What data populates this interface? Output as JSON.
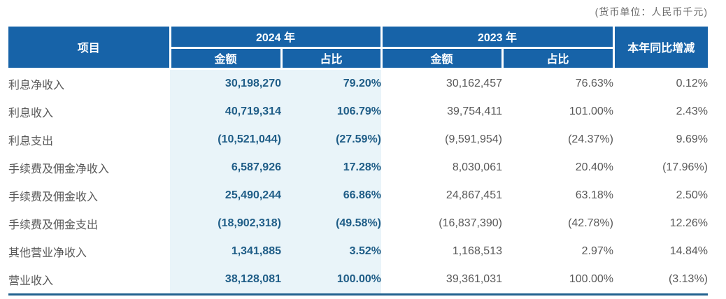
{
  "unit_note": "(货币单位：人民币千元)",
  "colors": {
    "header_bg": "#1763a8",
    "highlight_col_bg": "#e9f4f9",
    "value_2024_text": "#1f5d87",
    "muted_text": "#595959",
    "bottom_rule": "#21618f"
  },
  "table": {
    "headers": {
      "item": "项目",
      "year_2024": "2024 年",
      "year_2023": "2023 年",
      "amount": "金额",
      "ratio": "占比",
      "yoy": "本年同比增减"
    },
    "rows": [
      {
        "label": "利息净收入",
        "indent": 1,
        "amount_2024": "30,198,270",
        "ratio_2024": "79.20%",
        "amount_2023": "30,162,457",
        "ratio_2023": "76.63%",
        "yoy": "0.12%"
      },
      {
        "label": "利息收入",
        "indent": 2,
        "amount_2024": "40,719,314",
        "ratio_2024": "106.79%",
        "amount_2023": "39,754,411",
        "ratio_2023": "101.00%",
        "yoy": "2.43%"
      },
      {
        "label": "利息支出",
        "indent": 2,
        "amount_2024": "(10,521,044)",
        "ratio_2024": "(27.59%)",
        "amount_2023": "(9,591,954)",
        "ratio_2023": "(24.37%)",
        "yoy": "9.69%"
      },
      {
        "label": "手续费及佣金净收入",
        "indent": 1,
        "amount_2024": "6,587,926",
        "ratio_2024": "17.28%",
        "amount_2023": "8,030,061",
        "ratio_2023": "20.40%",
        "yoy": "(17.96%)"
      },
      {
        "label": "手续费及佣金收入",
        "indent": 2,
        "amount_2024": "25,490,244",
        "ratio_2024": "66.86%",
        "amount_2023": "24,867,451",
        "ratio_2023": "63.18%",
        "yoy": "2.50%"
      },
      {
        "label": "手续费及佣金支出",
        "indent": 2,
        "amount_2024": "(18,902,318)",
        "ratio_2024": "(49.58%)",
        "amount_2023": "(16,837,390)",
        "ratio_2023": "(42.78%)",
        "yoy": "12.26%"
      },
      {
        "label": "其他营业净收入",
        "indent": 1,
        "amount_2024": "1,341,885",
        "ratio_2024": "3.52%",
        "amount_2023": "1,168,513",
        "ratio_2023": "2.97%",
        "yoy": "14.84%"
      },
      {
        "label": "营业收入",
        "indent": 0,
        "amount_2024": "38,128,081",
        "ratio_2024": "100.00%",
        "amount_2023": "39,361,031",
        "ratio_2023": "100.00%",
        "yoy": "(3.13%)"
      }
    ]
  }
}
